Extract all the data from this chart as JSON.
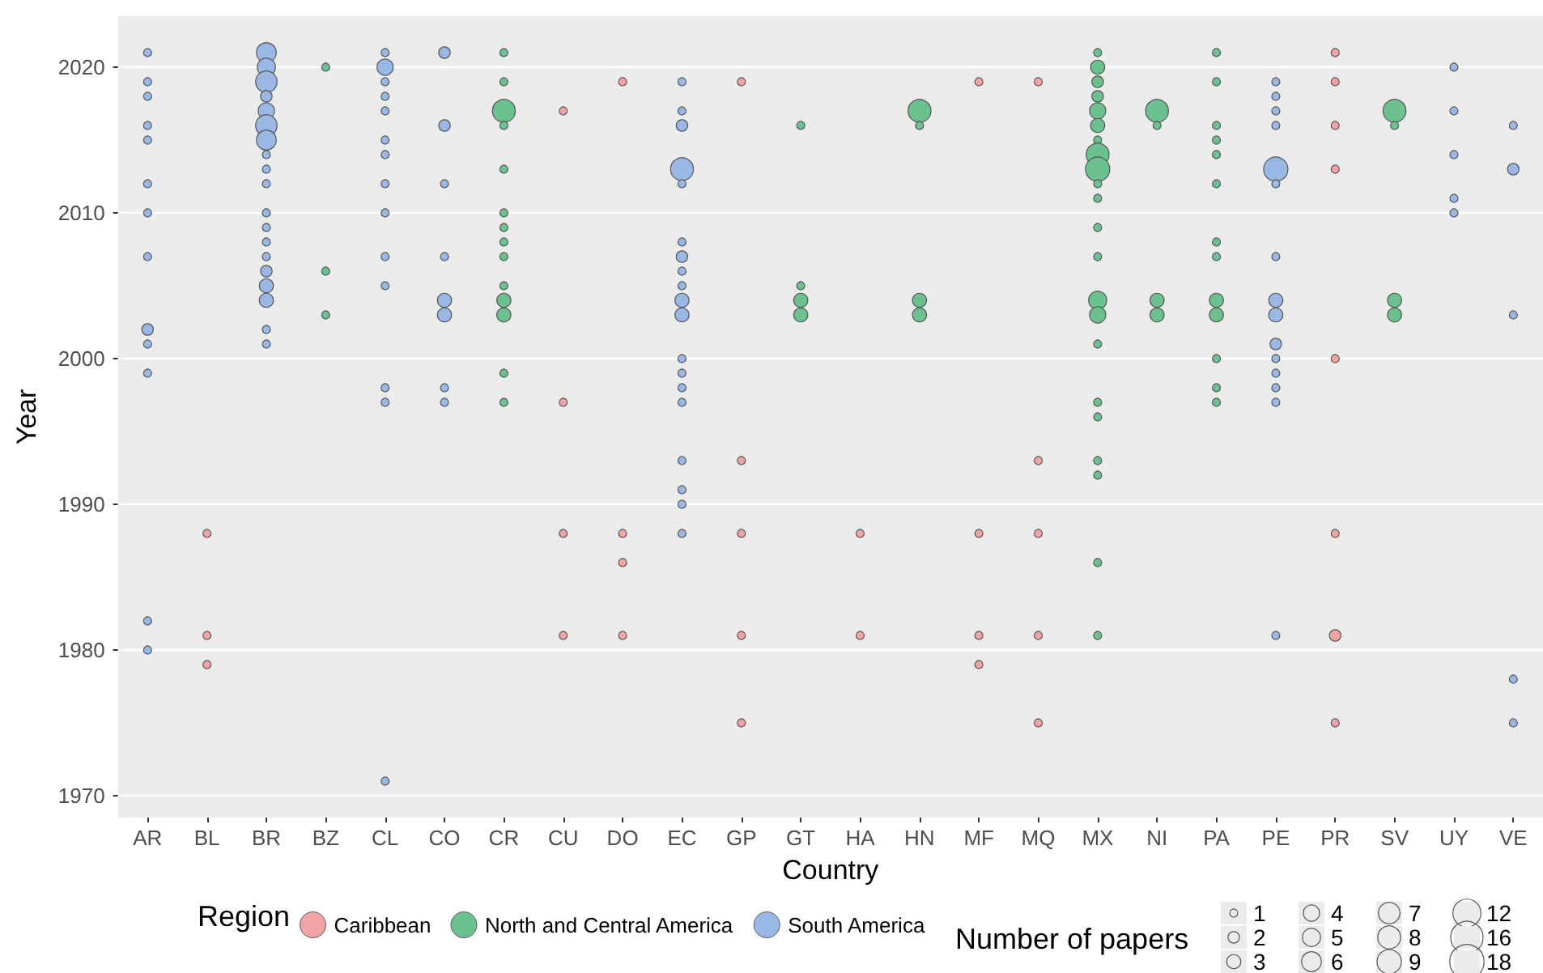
{
  "chart_data": {
    "type": "bubble",
    "xlabel": "Country",
    "ylabel": "Year",
    "legend_title": "Region",
    "annotations": [
      "Number of papers"
    ],
    "categories": [
      "AR",
      "BL",
      "BR",
      "BZ",
      "CL",
      "CO",
      "CR",
      "CU",
      "DO",
      "EC",
      "GP",
      "GT",
      "HA",
      "HN",
      "MF",
      "MQ",
      "MX",
      "NI",
      "PA",
      "PE",
      "PR",
      "SV",
      "UY",
      "VE"
    ],
    "ylim": [
      1968.5,
      2023.5
    ],
    "yticks": [
      1970,
      1980,
      1990,
      2000,
      2010,
      2020
    ],
    "grid": true,
    "legend": "bottom",
    "marker": "circle",
    "size_legend": [
      1,
      2,
      3,
      4,
      5,
      6,
      7,
      8,
      9,
      12,
      16,
      18
    ],
    "series": [
      {
        "name": "Caribbean",
        "color": "#f2a3a3",
        "x": [
          "BL",
          "BL",
          "BL",
          "CU",
          "CU",
          "CU",
          "CU",
          "DO",
          "DO",
          "DO",
          "DO",
          "GP",
          "GP",
          "GP",
          "GP",
          "GP",
          "HA",
          "HA",
          "MF",
          "MF",
          "MF",
          "MF",
          "MQ",
          "MQ",
          "MQ",
          "MQ",
          "MQ",
          "PR",
          "PR",
          "PR",
          "PR",
          "PR",
          "PR",
          "PR",
          "PR"
        ],
        "values": [
          1988,
          1981,
          1979,
          2017,
          1997,
          1988,
          1981,
          2019,
          1988,
          1986,
          1981,
          2019,
          1993,
          1988,
          1981,
          1975,
          1988,
          1981,
          2019,
          1988,
          1981,
          1979,
          2019,
          1993,
          1988,
          1981,
          1975,
          2021,
          2019,
          2016,
          2013,
          2000,
          1988,
          1981,
          1975
        ],
        "sizes": [
          1,
          1,
          1,
          1,
          1,
          1,
          1,
          1,
          1,
          1,
          1,
          1,
          1,
          1,
          1,
          1,
          1,
          1,
          1,
          1,
          1,
          1,
          1,
          1,
          1,
          1,
          1,
          1,
          1,
          1,
          1,
          1,
          1,
          2,
          1
        ]
      },
      {
        "name": "North and Central America",
        "color": "#6cc28e",
        "x": [
          "BZ",
          "BZ",
          "BZ",
          "CR",
          "CR",
          "CR",
          "CR",
          "CR",
          "CR",
          "CR",
          "CR",
          "CR",
          "CR",
          "CR",
          "CR",
          "CR",
          "CR",
          "GT",
          "GT",
          "GT",
          "GT",
          "HN",
          "HN",
          "HN",
          "HN",
          "MX",
          "MX",
          "MX",
          "MX",
          "MX",
          "MX",
          "MX",
          "MX",
          "MX",
          "MX",
          "MX",
          "MX",
          "MX",
          "MX",
          "MX",
          "MX",
          "MX",
          "MX",
          "MX",
          "MX",
          "MX",
          "MX",
          "NI",
          "NI",
          "NI",
          "NI",
          "PA",
          "PA",
          "PA",
          "PA",
          "PA",
          "PA",
          "PA",
          "PA",
          "PA",
          "PA",
          "PA",
          "PA",
          "PA",
          "SV",
          "SV",
          "SV",
          "SV"
        ],
        "values": [
          2020,
          2006,
          2003,
          2021,
          2019,
          2017,
          2016,
          2013,
          2010,
          2009,
          2008,
          2007,
          2005,
          2004,
          2003,
          1999,
          1997,
          2016,
          2005,
          2004,
          2003,
          2017,
          2016,
          2004,
          2003,
          2021,
          2020,
          2019,
          2018,
          2017,
          2016,
          2015,
          2014,
          2013,
          2012,
          2011,
          2009,
          2007,
          2004,
          2003,
          2001,
          1997,
          1996,
          1993,
          1992,
          1986,
          1981,
          2017,
          2016,
          2004,
          2003,
          2021,
          2019,
          2016,
          2015,
          2014,
          2012,
          2008,
          2007,
          2004,
          2003,
          2000,
          1998,
          1997,
          2017,
          2016,
          2004,
          2003
        ],
        "sizes": [
          1,
          1,
          1,
          1,
          1,
          8,
          1,
          1,
          1,
          1,
          1,
          1,
          1,
          3,
          3,
          1,
          1,
          1,
          1,
          3,
          3,
          8,
          1,
          3,
          3,
          1,
          3,
          2,
          2,
          4,
          3,
          1,
          8,
          9,
          1,
          1,
          1,
          1,
          5,
          4,
          1,
          1,
          1,
          1,
          1,
          1,
          1,
          8,
          1,
          3,
          3,
          1,
          1,
          1,
          1,
          1,
          1,
          1,
          1,
          3,
          3,
          1,
          1,
          1,
          8,
          1,
          3,
          3
        ]
      },
      {
        "name": "South America",
        "color": "#9ab8e6",
        "x": [
          "AR",
          "AR",
          "AR",
          "AR",
          "AR",
          "AR",
          "AR",
          "AR",
          "AR",
          "AR",
          "AR",
          "AR",
          "AR",
          "BR",
          "BR",
          "BR",
          "BR",
          "BR",
          "BR",
          "BR",
          "BR",
          "BR",
          "BR",
          "BR",
          "BR",
          "BR",
          "BR",
          "BR",
          "BR",
          "BR",
          "BR",
          "BR",
          "CL",
          "CL",
          "CL",
          "CL",
          "CL",
          "CL",
          "CL",
          "CL",
          "CL",
          "CL",
          "CL",
          "CL",
          "CL",
          "CL",
          "CO",
          "CO",
          "CO",
          "CO",
          "CO",
          "CO",
          "CO",
          "CO",
          "EC",
          "EC",
          "EC",
          "EC",
          "EC",
          "EC",
          "EC",
          "EC",
          "EC",
          "EC",
          "EC",
          "EC",
          "EC",
          "EC",
          "EC",
          "EC",
          "EC",
          "EC",
          "EC",
          "PE",
          "PE",
          "PE",
          "PE",
          "PE",
          "PE",
          "PE",
          "PE",
          "PE",
          "PE",
          "PE",
          "PE",
          "PE",
          "PE",
          "PE",
          "UY",
          "UY",
          "UY",
          "UY",
          "UY",
          "VE",
          "VE",
          "VE",
          "VE",
          "VE"
        ],
        "values": [
          2021,
          2019,
          2018,
          2016,
          2015,
          2012,
          2010,
          2007,
          2002,
          2001,
          1999,
          1982,
          1980,
          2021,
          2020,
          2019,
          2018,
          2017,
          2016,
          2015,
          2014,
          2013,
          2012,
          2010,
          2009,
          2008,
          2007,
          2006,
          2005,
          2004,
          2002,
          2001,
          2021,
          2020,
          2019,
          2018,
          2017,
          2015,
          2014,
          2012,
          2010,
          2007,
          2005,
          1998,
          1997,
          1971,
          2021,
          2016,
          2012,
          2007,
          2004,
          2003,
          1998,
          1997,
          2019,
          2017,
          2016,
          2013,
          2012,
          2008,
          2007,
          2006,
          2005,
          2004,
          2003,
          2000,
          1999,
          1998,
          1997,
          1993,
          1991,
          1990,
          1988,
          2019,
          2018,
          2017,
          2016,
          2013,
          2012,
          2007,
          2004,
          2003,
          2001,
          2000,
          1999,
          1998,
          1997,
          1981,
          2020,
          2017,
          2014,
          2011,
          2010,
          2016,
          2013,
          2003,
          1978,
          1975
        ],
        "sizes": [
          1,
          1,
          1,
          1,
          1,
          1,
          1,
          1,
          2,
          1,
          1,
          1,
          1,
          6,
          5,
          7,
          2,
          4,
          7,
          6,
          1,
          1,
          1,
          1,
          1,
          1,
          1,
          2,
          3,
          3,
          1,
          1,
          1,
          4,
          1,
          1,
          1,
          1,
          1,
          1,
          1,
          1,
          1,
          1,
          1,
          1,
          2,
          2,
          1,
          1,
          3,
          3,
          1,
          1,
          1,
          1,
          2,
          8,
          1,
          1,
          2,
          1,
          1,
          3,
          3,
          1,
          1,
          1,
          1,
          1,
          1,
          1,
          1,
          1,
          1,
          1,
          1,
          9,
          1,
          1,
          3,
          3,
          2,
          1,
          1,
          1,
          1,
          1,
          1,
          1,
          1,
          1,
          1,
          1,
          2,
          1,
          1,
          1
        ]
      }
    ]
  }
}
